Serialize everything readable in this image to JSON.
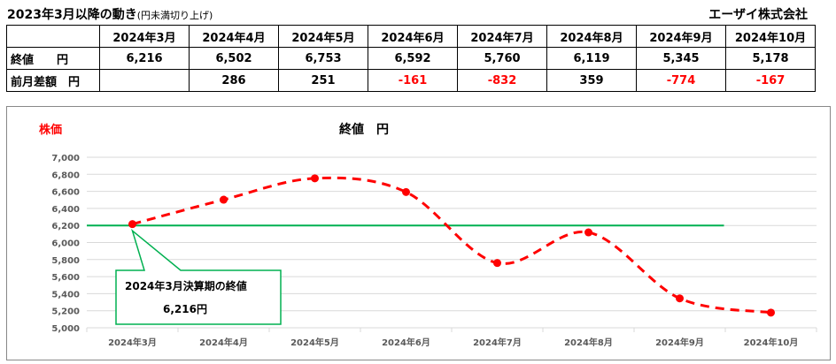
{
  "header": {
    "title": "2023年3月以降の動き",
    "title_note": "(円未満切り上げ)",
    "company": "エーザイ株式会社"
  },
  "table": {
    "months": [
      "2024年3月",
      "2024年4月",
      "2024年5月",
      "2024年6月",
      "2024年7月",
      "2024年8月",
      "2024年9月",
      "2024年10月"
    ],
    "row1_label": "終値　　円",
    "close": [
      "6,216",
      "6,502",
      "6,753",
      "6,592",
      "5,760",
      "6,119",
      "5,345",
      "5,178"
    ],
    "row2_label": "前月差額　円",
    "diff": [
      "",
      "286",
      "251",
      "-161",
      "-832",
      "359",
      "-774",
      "-167"
    ]
  },
  "chart_data": {
    "type": "line",
    "title": "終値　円",
    "ylabel": "株価",
    "categories": [
      "2024年3月",
      "2024年4月",
      "2024年5月",
      "2024年6月",
      "2024年7月",
      "2024年8月",
      "2024年9月",
      "2024年10月"
    ],
    "values": [
      6216,
      6502,
      6753,
      6592,
      5760,
      6119,
      5345,
      5178
    ],
    "ylim": [
      5000,
      7000
    ],
    "yticks": [
      "5,000",
      "5,200",
      "5,400",
      "5,600",
      "5,800",
      "6,000",
      "6,200",
      "6,400",
      "6,600",
      "6,800",
      "7,000"
    ],
    "reference_line": 6200,
    "grid": true,
    "colors": {
      "series": "#ff0000",
      "reference": "#00b050"
    },
    "annotation": {
      "line1": "2024年3月決算期の終値",
      "line2": "6,216円"
    }
  }
}
